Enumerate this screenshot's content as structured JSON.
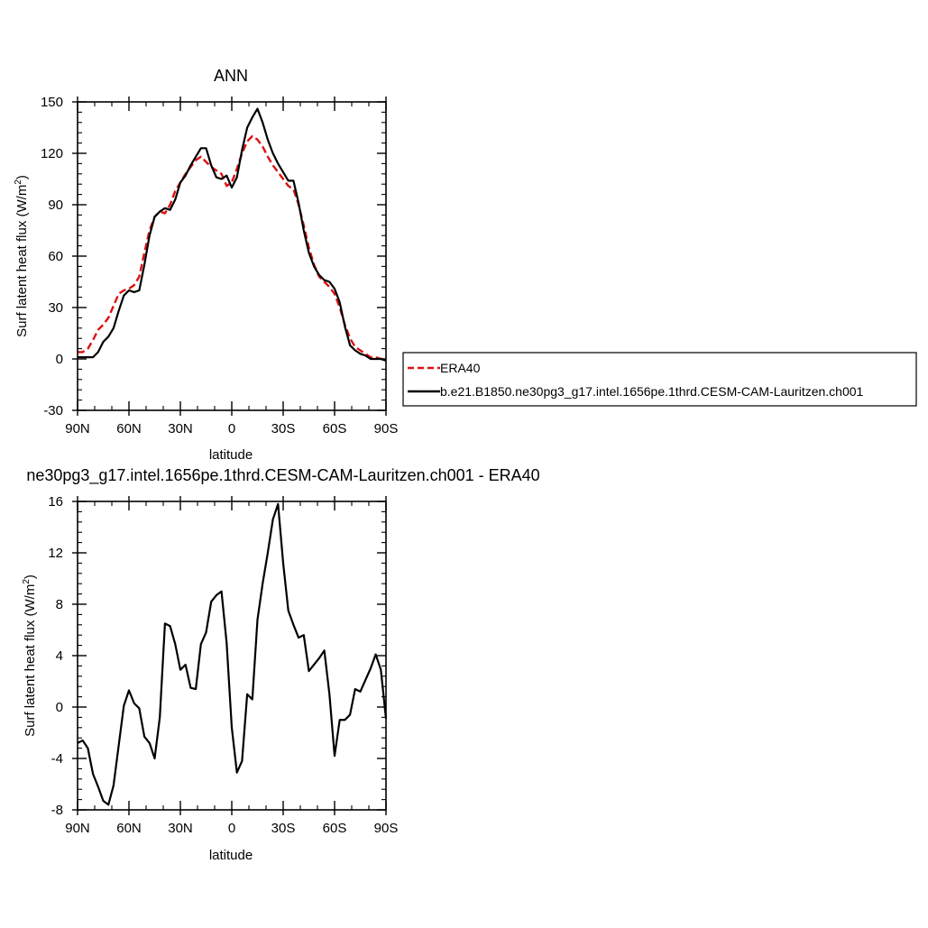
{
  "chart_data": [
    {
      "type": "line",
      "title": "ANN",
      "xlabel": "latitude",
      "ylabel": "Surf latent heat flux (W/m",
      "ylabel_sup": "2",
      "ylabel_end": ")",
      "xlim": [
        90,
        -90
      ],
      "ylim": [
        -30,
        150
      ],
      "xticks": [
        90,
        60,
        30,
        0,
        -30,
        -60,
        -90
      ],
      "xtick_labels": [
        "90N",
        "60N",
        "30N",
        "0",
        "30S",
        "60S",
        "90S"
      ],
      "yticks": [
        -30,
        0,
        30,
        60,
        90,
        120,
        150
      ],
      "ytick_labels": [
        "-30",
        "0",
        "30",
        "60",
        "90",
        "120",
        "150"
      ],
      "legend": "right, outside plot",
      "series": [
        {
          "name": "ERA40",
          "color": "#dd1111",
          "dash": "dashed",
          "points": [
            [
              90,
              4
            ],
            [
              87,
              4
            ],
            [
              84,
              6
            ],
            [
              81,
              11
            ],
            [
              78,
              17
            ],
            [
              75,
              20
            ],
            [
              72,
              24
            ],
            [
              69,
              31
            ],
            [
              66,
              38
            ],
            [
              63,
              40
            ],
            [
              60,
              41
            ],
            [
              57,
              43
            ],
            [
              54,
              48
            ],
            [
              51,
              62
            ],
            [
              48,
              75
            ],
            [
              45,
              83
            ],
            [
              42,
              86
            ],
            [
              39,
              85
            ],
            [
              36,
              90
            ],
            [
              33,
              98
            ],
            [
              30,
              103
            ],
            [
              27,
              108
            ],
            [
              24,
              112
            ],
            [
              21,
              116
            ],
            [
              18,
              118
            ],
            [
              15,
              115
            ],
            [
              12,
              112
            ],
            [
              9,
              110
            ],
            [
              6,
              108
            ],
            [
              3,
              101
            ],
            [
              0,
              103
            ],
            [
              -3,
              111
            ],
            [
              -6,
              120
            ],
            [
              -9,
              127
            ],
            [
              -12,
              130
            ],
            [
              -15,
              128
            ],
            [
              -18,
              124
            ],
            [
              -21,
              118
            ],
            [
              -24,
              113
            ],
            [
              -27,
              109
            ],
            [
              -30,
              105
            ],
            [
              -33,
              101
            ],
            [
              -36,
              99
            ],
            [
              -39,
              90
            ],
            [
              -42,
              78
            ],
            [
              -45,
              65
            ],
            [
              -48,
              55
            ],
            [
              -51,
              48
            ],
            [
              -54,
              45
            ],
            [
              -57,
              42
            ],
            [
              -60,
              38
            ],
            [
              -63,
              30
            ],
            [
              -66,
              20
            ],
            [
              -69,
              12
            ],
            [
              -72,
              7
            ],
            [
              -75,
              5
            ],
            [
              -78,
              3
            ],
            [
              -81,
              1
            ],
            [
              -84,
              1
            ],
            [
              -87,
              0
            ],
            [
              -90,
              0
            ]
          ]
        },
        {
          "name": "b.e21.B1850.ne30pg3_g17.intel.1656pe.1thrd.CESM-CAM-Lauritzen.ch001",
          "color": "#000000",
          "dash": "solid",
          "points": [
            [
              90,
              1
            ],
            [
              87,
              1
            ],
            [
              84,
              1
            ],
            [
              81,
              1
            ],
            [
              78,
              4
            ],
            [
              75,
              10
            ],
            [
              72,
              13
            ],
            [
              69,
              18
            ],
            [
              66,
              28
            ],
            [
              63,
              37
            ],
            [
              60,
              40
            ],
            [
              57,
              39
            ],
            [
              54,
              40
            ],
            [
              51,
              55
            ],
            [
              48,
              72
            ],
            [
              45,
              83
            ],
            [
              42,
              86
            ],
            [
              39,
              88
            ],
            [
              36,
              87
            ],
            [
              33,
              93
            ],
            [
              30,
              103
            ],
            [
              27,
              107
            ],
            [
              24,
              113
            ],
            [
              21,
              118
            ],
            [
              18,
              123
            ],
            [
              15,
              123
            ],
            [
              12,
              113
            ],
            [
              9,
              106
            ],
            [
              6,
              105
            ],
            [
              3,
              107
            ],
            [
              0,
              100
            ],
            [
              -3,
              106
            ],
            [
              -6,
              122
            ],
            [
              -9,
              135
            ],
            [
              -12,
              141
            ],
            [
              -15,
              146
            ],
            [
              -18,
              138
            ],
            [
              -21,
              128
            ],
            [
              -24,
              120
            ],
            [
              -27,
              114
            ],
            [
              -30,
              109
            ],
            [
              -33,
              104
            ],
            [
              -36,
              104
            ],
            [
              -39,
              91
            ],
            [
              -42,
              75
            ],
            [
              -45,
              62
            ],
            [
              -48,
              54
            ],
            [
              -51,
              49
            ],
            [
              -54,
              46
            ],
            [
              -57,
              45
            ],
            [
              -60,
              41
            ],
            [
              -63,
              33
            ],
            [
              -66,
              19
            ],
            [
              -69,
              8
            ],
            [
              -72,
              5
            ],
            [
              -75,
              3
            ],
            [
              -78,
              2
            ],
            [
              -81,
              0
            ],
            [
              -84,
              0
            ],
            [
              -87,
              0
            ],
            [
              -90,
              -1
            ]
          ]
        }
      ]
    },
    {
      "type": "line",
      "title": "ne30pg3_g17.intel.1656pe.1thrd.CESM-CAM-Lauritzen.ch001 - ERA40",
      "xlabel": "latitude",
      "ylabel": "Surf latent heat flux (W/m",
      "ylabel_sup": "2",
      "ylabel_end": ")",
      "xlim": [
        90,
        -90
      ],
      "ylim": [
        -8,
        16
      ],
      "xticks": [
        90,
        60,
        30,
        0,
        -30,
        -60,
        -90
      ],
      "xtick_labels": [
        "90N",
        "60N",
        "30N",
        "0",
        "30S",
        "60S",
        "90S"
      ],
      "yticks": [
        -8,
        -4,
        0,
        4,
        8,
        12,
        16
      ],
      "ytick_labels": [
        "-8",
        "-4",
        "0",
        "4",
        "8",
        "12",
        "16"
      ],
      "series": [
        {
          "color": "#000000",
          "dash": "solid",
          "points": [
            [
              90,
              -2.8
            ],
            [
              87,
              -2.6
            ],
            [
              84,
              -3.2
            ],
            [
              81,
              -5.2
            ],
            [
              78,
              -6.2
            ],
            [
              75,
              -7.3
            ],
            [
              72,
              -7.6
            ],
            [
              69,
              -6.1
            ],
            [
              66,
              -3.0
            ],
            [
              63,
              0.1
            ],
            [
              60,
              1.3
            ],
            [
              57,
              0.3
            ],
            [
              54,
              -0.1
            ],
            [
              51,
              -2.3
            ],
            [
              48,
              -2.8
            ],
            [
              45,
              -4.0
            ],
            [
              42,
              -0.8
            ],
            [
              39,
              6.5
            ],
            [
              36,
              6.3
            ],
            [
              33,
              4.9
            ],
            [
              30,
              2.9
            ],
            [
              27,
              3.3
            ],
            [
              24,
              1.5
            ],
            [
              21,
              1.4
            ],
            [
              18,
              4.9
            ],
            [
              15,
              5.8
            ],
            [
              12,
              8.2
            ],
            [
              9,
              8.7
            ],
            [
              6,
              9.0
            ],
            [
              3,
              5.0
            ],
            [
              0,
              -1.6
            ],
            [
              -3,
              -5.1
            ],
            [
              -6,
              -4.2
            ],
            [
              -9,
              1.0
            ],
            [
              -12,
              0.6
            ],
            [
              -15,
              6.8
            ],
            [
              -18,
              9.6
            ],
            [
              -21,
              12.0
            ],
            [
              -24,
              14.6
            ],
            [
              -27,
              15.8
            ],
            [
              -30,
              11.2
            ],
            [
              -33,
              7.5
            ],
            [
              -36,
              6.4
            ],
            [
              -39,
              5.4
            ],
            [
              -42,
              5.6
            ],
            [
              -45,
              2.8
            ],
            [
              -48,
              3.3
            ],
            [
              -51,
              3.8
            ],
            [
              -54,
              4.4
            ],
            [
              -57,
              1.0
            ],
            [
              -60,
              -3.8
            ],
            [
              -63,
              -1.0
            ],
            [
              -66,
              -1.0
            ],
            [
              -69,
              -0.6
            ],
            [
              -72,
              1.4
            ],
            [
              -75,
              1.2
            ],
            [
              -78,
              2.1
            ],
            [
              -81,
              3.0
            ],
            [
              -84,
              4.1
            ],
            [
              -87,
              2.9
            ],
            [
              -90,
              -0.9
            ]
          ]
        }
      ]
    }
  ]
}
